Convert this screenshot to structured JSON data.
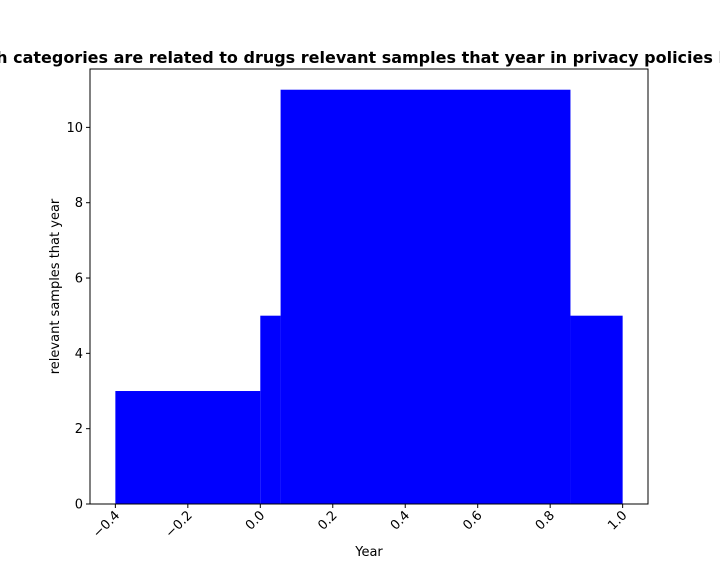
{
  "chart_data": {
    "type": "bar",
    "title": "Which categories are related to drugs relevant samples that year in privacy policies by year",
    "xlabel": "Year",
    "ylabel": "relevant samples that year",
    "xlim": [
      -0.47,
      1.07
    ],
    "ylim": [
      0,
      11.55
    ],
    "x_ticks": [
      -0.4,
      -0.2,
      0.0,
      0.2,
      0.4,
      0.6,
      0.8,
      1.0
    ],
    "x_tick_labels": [
      "−0.4",
      "−0.2",
      "0.0",
      "0.2",
      "0.4",
      "0.6",
      "0.8",
      "1.0"
    ],
    "y_ticks": [
      0,
      2,
      4,
      6,
      8,
      10
    ],
    "y_tick_labels": [
      "0",
      "2",
      "4",
      "6",
      "8",
      "10"
    ],
    "bar_color": "#0000ff",
    "grid": false,
    "bars": [
      {
        "x_start": -0.4,
        "x_end": 0.0,
        "value": 3
      },
      {
        "x_start": 0.0,
        "x_end": 0.056,
        "value": 5
      },
      {
        "x_start": 0.056,
        "x_end": 0.856,
        "value": 11
      },
      {
        "x_start": 0.856,
        "x_end": 1.0,
        "value": 5
      }
    ]
  }
}
